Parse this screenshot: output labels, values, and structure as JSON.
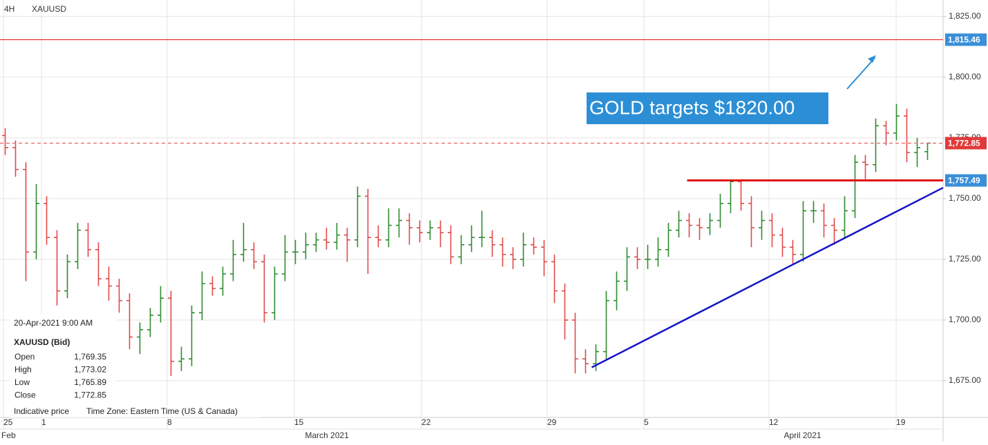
{
  "chart_data": {
    "type": "ohlc",
    "timeframe": "4H",
    "symbol": "XAUUSD",
    "up_color": "#2e8b2e",
    "down_color": "#e04848",
    "opens": [
      1776,
      1771,
      1762,
      1728,
      1748,
      1734,
      1712,
      1724,
      1737,
      1729,
      1717,
      1714,
      1708,
      1693,
      1696,
      1702,
      1709,
      1683,
      1684,
      1703,
      1715,
      1713,
      1719,
      1727,
      1729,
      1724,
      1703,
      1719,
      1728,
      1728,
      1731,
      1733,
      1732,
      1735,
      1733,
      1751,
      1734,
      1733,
      1739,
      1741,
      1738,
      1736,
      1738,
      1736,
      1726,
      1731,
      1734,
      1734,
      1731,
      1727,
      1725,
      1731,
      1730,
      1724,
      1712,
      1700,
      1684,
      1682,
      1687,
      1708,
      1716,
      1726,
      1725,
      1725,
      1729,
      1737,
      1741,
      1739,
      1738,
      1741,
      1748,
      1757,
      1748,
      1738,
      1741,
      1735,
      1730,
      1727,
      1745,
      1745,
      1739,
      1737,
      1745,
      1765,
      1764,
      1780,
      1777,
      1784,
      1769,
      1769.35
    ],
    "highs": [
      1779,
      1774,
      1765,
      1756,
      1751,
      1737,
      1727,
      1740,
      1740,
      1732,
      1722,
      1717,
      1711,
      1699,
      1705,
      1714,
      1712,
      1689,
      1706,
      1720,
      1718,
      1722,
      1733,
      1740,
      1732,
      1727,
      1722,
      1735,
      1733,
      1736,
      1736,
      1738,
      1740,
      1738,
      1755,
      1754,
      1739,
      1746,
      1746,
      1744,
      1741,
      1741,
      1741,
      1739,
      1735,
      1739,
      1745,
      1737,
      1734,
      1730,
      1736,
      1734,
      1733,
      1727,
      1715,
      1703,
      1688,
      1690,
      1712,
      1720,
      1730,
      1730,
      1731,
      1734,
      1740,
      1745,
      1744,
      1742,
      1744,
      1752,
      1758,
      1758,
      1751,
      1745,
      1744,
      1738,
      1733,
      1749,
      1749,
      1748,
      1742,
      1751,
      1768,
      1768,
      1783,
      1782,
      1789,
      1787,
      1775,
      1773.02
    ],
    "lows": [
      1768,
      1759,
      1716,
      1725,
      1731,
      1706,
      1709,
      1721,
      1726,
      1714,
      1708,
      1703,
      1688,
      1686,
      1693,
      1699,
      1677,
      1679,
      1681,
      1700,
      1710,
      1710,
      1716,
      1724,
      1721,
      1699,
      1700,
      1716,
      1723,
      1725,
      1728,
      1729,
      1729,
      1724,
      1730,
      1719,
      1730,
      1730,
      1734,
      1731,
      1732,
      1733,
      1730,
      1723,
      1723,
      1728,
      1730,
      1726,
      1722,
      1721,
      1722,
      1727,
      1718,
      1707,
      1692,
      1678,
      1678,
      1679,
      1684,
      1704,
      1712,
      1721,
      1721,
      1722,
      1726,
      1734,
      1734,
      1733,
      1735,
      1738,
      1744,
      1745,
      1730,
      1733,
      1730,
      1726,
      1723,
      1724,
      1740,
      1734,
      1731,
      1734,
      1742,
      1758,
      1761,
      1772,
      1774,
      1765,
      1763,
      1765.89
    ],
    "closes": [
      1771,
      1762,
      1728,
      1748,
      1734,
      1712,
      1724,
      1737,
      1729,
      1717,
      1714,
      1708,
      1693,
      1696,
      1702,
      1709,
      1683,
      1684,
      1703,
      1715,
      1713,
      1719,
      1727,
      1729,
      1724,
      1703,
      1719,
      1728,
      1728,
      1731,
      1733,
      1732,
      1735,
      1733,
      1751,
      1734,
      1733,
      1739,
      1741,
      1738,
      1736,
      1738,
      1736,
      1726,
      1731,
      1734,
      1734,
      1731,
      1727,
      1725,
      1731,
      1730,
      1724,
      1712,
      1700,
      1684,
      1682,
      1687,
      1708,
      1716,
      1726,
      1725,
      1725,
      1729,
      1737,
      1741,
      1739,
      1738,
      1741,
      1748,
      1757,
      1748,
      1738,
      1741,
      1735,
      1730,
      1727,
      1745,
      1745,
      1739,
      1737,
      1745,
      1765,
      1764,
      1780,
      1777,
      1784,
      1769,
      1771,
      1772.85
    ],
    "xlim": [
      0,
      91
    ],
    "xticks": [
      {
        "value": 0.33,
        "label": "25"
      },
      {
        "value": 4,
        "label": "1"
      },
      {
        "value": 16.13,
        "label": "8"
      },
      {
        "value": 28.4,
        "label": "15"
      },
      {
        "value": 40.67,
        "label": "22"
      },
      {
        "value": 52.8,
        "label": "29"
      },
      {
        "value": 62.13,
        "label": "5"
      },
      {
        "value": 74.2,
        "label": "12"
      },
      {
        "value": 86.47,
        "label": "19"
      }
    ],
    "month_ticks": [
      {
        "value": 0,
        "label": "Feb"
      },
      {
        "value": 29.3,
        "label": "March 2021"
      },
      {
        "value": 75.5,
        "label": "April 2021"
      }
    ],
    "ylim": [
      1659.9,
      1831.8
    ],
    "yticks": [
      {
        "value": 1675,
        "label": "1,675.00"
      },
      {
        "value": 1700,
        "label": "1,700.00"
      },
      {
        "value": 1725,
        "label": "1,725.00"
      },
      {
        "value": 1750,
        "label": "1,750.00"
      },
      {
        "value": 1775,
        "label": "1,775.00"
      },
      {
        "value": 1800,
        "label": "1,800.00"
      },
      {
        "value": 1825,
        "label": "1,825.00"
      }
    ],
    "grid": true,
    "levels": [
      {
        "value": 1815.46,
        "label": "1,815.46",
        "color": "#e03030",
        "tag_color": "#3a8fd8",
        "style": "solid",
        "from": 0
      },
      {
        "value": 1772.85,
        "label": "1,772.85",
        "color": "#e86060",
        "tag_color": "#e03a3a",
        "style": "dashed",
        "from": 0
      },
      {
        "value": 1757.49,
        "label": "1,757.49",
        "color": "#e01010",
        "tag_color": "#3a8fd8",
        "style": "thick",
        "from": 66.3
      }
    ],
    "trendline": {
      "color": "#1414c8",
      "x": [
        57.1,
        91
      ],
      "y": [
        1680.5,
        1754.5
      ]
    },
    "annotation": "GOLD targets $1820.00",
    "info": {
      "date": "20-Apr-2021 9:00 AM",
      "symbol": "XAUUSD (Bid)",
      "rows": [
        [
          "Open",
          "1,769.35"
        ],
        [
          "High",
          "1,773.02"
        ],
        [
          "Low",
          "1,765.89"
        ],
        [
          "Close",
          "1,772.85"
        ]
      ],
      "footer": [
        "Indicative price",
        "Time Zone: Eastern Time (US & Canada)"
      ]
    }
  }
}
